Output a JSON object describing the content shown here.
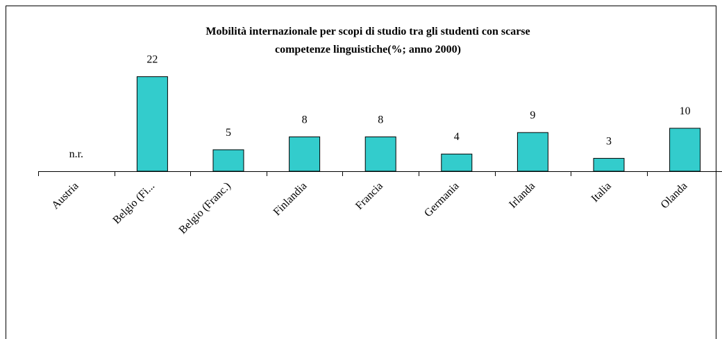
{
  "chart_data": {
    "type": "bar",
    "title": [
      "Mobilità internazionale per scopi di studio tra gli studenti con scarse",
      "competenze linguistiche(%; anno 2000)"
    ],
    "categories": [
      "Austria",
      "Belgio (Fi...",
      "Belgio (Franc.)",
      "Finlandia",
      "Francia",
      "Germania",
      "Irlanda",
      "Italia",
      "Olanda"
    ],
    "values": [
      null,
      22,
      5,
      8,
      8,
      4,
      9,
      3,
      10
    ],
    "value_labels": [
      "n.r.",
      "22",
      "5",
      "8",
      "8",
      "4",
      "9",
      "3",
      "10"
    ],
    "color": "#33cccc",
    "ylim": [
      0,
      25
    ]
  }
}
